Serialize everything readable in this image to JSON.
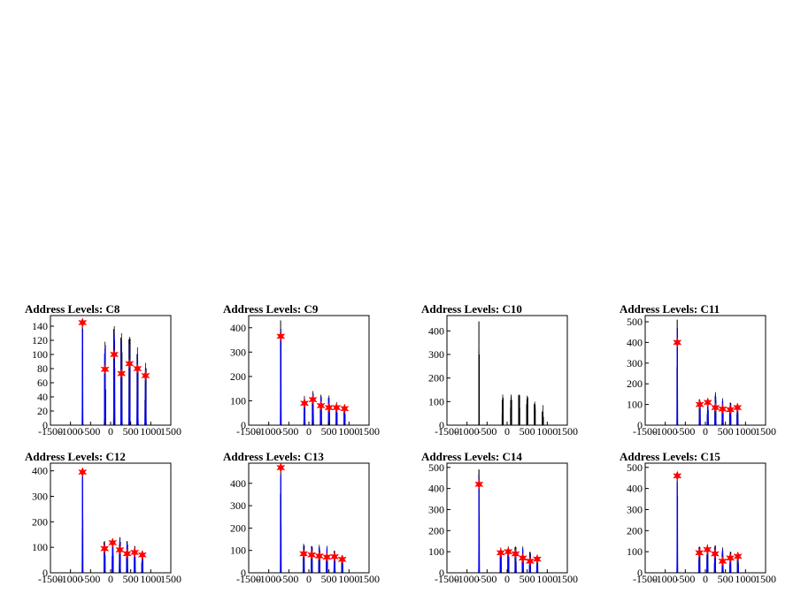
{
  "chart_data": [
    {
      "type": "line",
      "title": "Address Levels: C8",
      "xlim": [
        -1500,
        1500
      ],
      "ylim": [
        0,
        155
      ],
      "xticks": [
        -1500,
        -1000,
        -500,
        0,
        500,
        1000,
        1500
      ],
      "yticks": [
        0,
        20,
        40,
        60,
        80,
        100,
        120,
        140
      ],
      "peaks": [
        {
          "x": -700,
          "h": 148,
          "blue": true
        },
        {
          "x": -140,
          "h": 118,
          "blue": true
        },
        {
          "x": 90,
          "h": 140,
          "blue": true
        },
        {
          "x": 270,
          "h": 130,
          "blue": true
        },
        {
          "x": 470,
          "h": 125,
          "blue": true
        },
        {
          "x": 670,
          "h": 110,
          "blue": true
        },
        {
          "x": 870,
          "h": 88,
          "blue": true
        }
      ],
      "markers": [
        {
          "x": -700,
          "y": 145
        },
        {
          "x": -140,
          "y": 79
        },
        {
          "x": 90,
          "y": 100
        },
        {
          "x": 270,
          "y": 73
        },
        {
          "x": 470,
          "y": 87
        },
        {
          "x": 670,
          "y": 80
        },
        {
          "x": 870,
          "y": 70
        }
      ]
    },
    {
      "type": "line",
      "title": "Address Levels: C9",
      "xlim": [
        -1500,
        1500
      ],
      "ylim": [
        0,
        450
      ],
      "xticks": [
        -1500,
        -1000,
        -500,
        0,
        500,
        1000,
        1500
      ],
      "yticks": [
        0,
        100,
        200,
        300,
        400
      ],
      "peaks": [
        {
          "x": -700,
          "h": 430,
          "blue": true
        },
        {
          "x": -110,
          "h": 120,
          "blue": true
        },
        {
          "x": 100,
          "h": 140,
          "blue": true
        },
        {
          "x": 300,
          "h": 125,
          "blue": true
        },
        {
          "x": 500,
          "h": 122,
          "blue": true
        },
        {
          "x": 690,
          "h": 95,
          "blue": true
        },
        {
          "x": 890,
          "h": 75,
          "blue": true
        }
      ],
      "markers": [
        {
          "x": -700,
          "y": 365
        },
        {
          "x": -110,
          "y": 90
        },
        {
          "x": 100,
          "y": 105
        },
        {
          "x": 300,
          "y": 80
        },
        {
          "x": 500,
          "y": 72
        },
        {
          "x": 690,
          "y": 72
        },
        {
          "x": 890,
          "y": 68
        }
      ]
    },
    {
      "type": "line",
      "title": "Address Levels: C10",
      "xlim": [
        -1500,
        1500
      ],
      "ylim": [
        0,
        465
      ],
      "xticks": [
        -1500,
        -1000,
        -500,
        0,
        500,
        1000,
        1500
      ],
      "yticks": [
        0,
        100,
        200,
        300,
        400
      ],
      "peaks": [
        {
          "x": -700,
          "h": 440,
          "blue": false
        },
        {
          "x": -110,
          "h": 130,
          "blue": false
        },
        {
          "x": 100,
          "h": 130,
          "blue": false
        },
        {
          "x": 300,
          "h": 130,
          "blue": false
        },
        {
          "x": 500,
          "h": 125,
          "blue": false
        },
        {
          "x": 690,
          "h": 100,
          "blue": false
        },
        {
          "x": 890,
          "h": 85,
          "blue": false
        }
      ],
      "markers": []
    },
    {
      "type": "line",
      "title": "Address Levels: C11",
      "xlim": [
        -1500,
        1500
      ],
      "ylim": [
        0,
        530
      ],
      "xticks": [
        -1500,
        -1000,
        -500,
        0,
        500,
        1000,
        1500
      ],
      "yticks": [
        0,
        100,
        200,
        300,
        400,
        500
      ],
      "peaks": [
        {
          "x": -700,
          "h": 510,
          "blue": true
        },
        {
          "x": -140,
          "h": 125,
          "blue": true
        },
        {
          "x": 60,
          "h": 130,
          "blue": true
        },
        {
          "x": 250,
          "h": 160,
          "blue": true
        },
        {
          "x": 430,
          "h": 130,
          "blue": true
        },
        {
          "x": 620,
          "h": 110,
          "blue": true
        },
        {
          "x": 800,
          "h": 95,
          "blue": true
        }
      ],
      "markers": [
        {
          "x": -700,
          "y": 400
        },
        {
          "x": -140,
          "y": 100
        },
        {
          "x": 60,
          "y": 110
        },
        {
          "x": 250,
          "y": 85
        },
        {
          "x": 430,
          "y": 78
        },
        {
          "x": 620,
          "y": 75
        },
        {
          "x": 800,
          "y": 85
        }
      ]
    },
    {
      "type": "line",
      "title": "Address Levels: C12",
      "xlim": [
        -1500,
        1500
      ],
      "ylim": [
        0,
        430
      ],
      "xticks": [
        -1500,
        -1000,
        -500,
        0,
        500,
        1000,
        1500
      ],
      "yticks": [
        0,
        100,
        200,
        300,
        400
      ],
      "peaks": [
        {
          "x": -700,
          "h": 410,
          "blue": true
        },
        {
          "x": -150,
          "h": 125,
          "blue": true
        },
        {
          "x": 50,
          "h": 130,
          "blue": true
        },
        {
          "x": 230,
          "h": 140,
          "blue": true
        },
        {
          "x": 410,
          "h": 125,
          "blue": true
        },
        {
          "x": 600,
          "h": 105,
          "blue": true
        },
        {
          "x": 790,
          "h": 80,
          "blue": true
        }
      ],
      "markers": [
        {
          "x": -700,
          "y": 395
        },
        {
          "x": -150,
          "y": 95
        },
        {
          "x": 50,
          "y": 118
        },
        {
          "x": 230,
          "y": 90
        },
        {
          "x": 410,
          "y": 75
        },
        {
          "x": 600,
          "y": 80
        },
        {
          "x": 790,
          "y": 70
        }
      ]
    },
    {
      "type": "line",
      "title": "Address Levels: C13",
      "xlim": [
        -1500,
        1500
      ],
      "ylim": [
        0,
        490
      ],
      "xticks": [
        -1500,
        -1000,
        -500,
        0,
        500,
        1000,
        1500
      ],
      "yticks": [
        0,
        100,
        200,
        300,
        400
      ],
      "peaks": [
        {
          "x": -700,
          "h": 475,
          "blue": true
        },
        {
          "x": -130,
          "h": 130,
          "blue": true
        },
        {
          "x": 70,
          "h": 120,
          "blue": true
        },
        {
          "x": 260,
          "h": 125,
          "blue": true
        },
        {
          "x": 450,
          "h": 120,
          "blue": true
        },
        {
          "x": 640,
          "h": 100,
          "blue": true
        },
        {
          "x": 830,
          "h": 75,
          "blue": true
        }
      ],
      "markers": [
        {
          "x": -700,
          "y": 470
        },
        {
          "x": -130,
          "y": 85
        },
        {
          "x": 70,
          "y": 80
        },
        {
          "x": 260,
          "y": 75
        },
        {
          "x": 450,
          "y": 70
        },
        {
          "x": 640,
          "y": 72
        },
        {
          "x": 830,
          "y": 60
        }
      ]
    },
    {
      "type": "line",
      "title": "Address Levels: C14",
      "xlim": [
        -1500,
        1500
      ],
      "ylim": [
        0,
        520
      ],
      "xticks": [
        -1500,
        -1000,
        -500,
        0,
        500,
        1000,
        1500
      ],
      "yticks": [
        0,
        100,
        200,
        300,
        400,
        500
      ],
      "peaks": [
        {
          "x": -700,
          "h": 490,
          "blue": true
        },
        {
          "x": -160,
          "h": 120,
          "blue": true
        },
        {
          "x": 30,
          "h": 125,
          "blue": true
        },
        {
          "x": 210,
          "h": 125,
          "blue": true
        },
        {
          "x": 390,
          "h": 125,
          "blue": true
        },
        {
          "x": 570,
          "h": 100,
          "blue": true
        },
        {
          "x": 750,
          "h": 80,
          "blue": true
        }
      ],
      "markers": [
        {
          "x": -700,
          "y": 420
        },
        {
          "x": -160,
          "y": 95
        },
        {
          "x": 30,
          "y": 100
        },
        {
          "x": 210,
          "y": 90
        },
        {
          "x": 390,
          "y": 70
        },
        {
          "x": 570,
          "y": 55
        },
        {
          "x": 750,
          "y": 65
        }
      ]
    },
    {
      "type": "line",
      "title": "Address Levels: C15",
      "xlim": [
        -1500,
        1500
      ],
      "ylim": [
        0,
        520
      ],
      "xticks": [
        -1500,
        -1000,
        -500,
        0,
        500,
        1000,
        1500
      ],
      "yticks": [
        0,
        100,
        200,
        300,
        400,
        500
      ],
      "peaks": [
        {
          "x": -700,
          "h": 470,
          "blue": true
        },
        {
          "x": -150,
          "h": 125,
          "blue": true
        },
        {
          "x": 50,
          "h": 135,
          "blue": true
        },
        {
          "x": 240,
          "h": 130,
          "blue": true
        },
        {
          "x": 430,
          "h": 120,
          "blue": true
        },
        {
          "x": 620,
          "h": 100,
          "blue": true
        },
        {
          "x": 810,
          "h": 85,
          "blue": true
        }
      ],
      "markers": [
        {
          "x": -700,
          "y": 460
        },
        {
          "x": -150,
          "y": 95
        },
        {
          "x": 50,
          "y": 110
        },
        {
          "x": 240,
          "y": 90
        },
        {
          "x": 430,
          "y": 55
        },
        {
          "x": 620,
          "y": 70
        },
        {
          "x": 810,
          "y": 78
        }
      ]
    }
  ],
  "colors": {
    "histogram": "#000000",
    "fit": "#0000ff",
    "marker": "#ff0000",
    "frame": "#000000"
  }
}
